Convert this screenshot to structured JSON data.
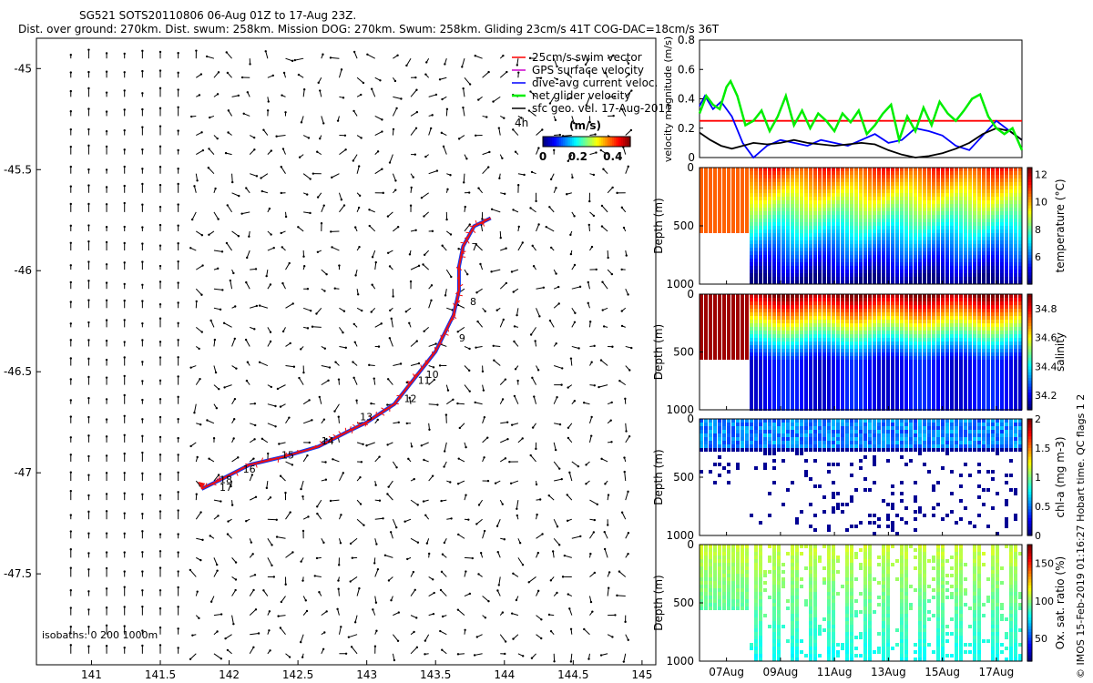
{
  "title_line1": "SG521 SOTS20110806 06-Aug 01Z to 17-Aug 23Z.",
  "title_line2": "Dist. over ground: 270km. Dist. swum: 258km. Mission DOG: 270km. Swum: 258km. Gliding 23cm/s 41T COG-DAC=18cm/s 36T",
  "copyright": "© IMOS 15-Feb-2019 01:16:27 Hobart time. QC flags 1  2",
  "colors": {
    "swim": "#ff0000",
    "gps": "#cc00cc",
    "dac": "#0000ff",
    "net": "#00ee00",
    "sfc": "#000000",
    "track_red": "#ee1111",
    "track_blue": "#1133ee"
  },
  "chart_data": [
    {
      "type": "map-track",
      "xlim": [
        140.6,
        145.1
      ],
      "ylim": [
        -47.95,
        -44.85
      ],
      "xticks": [
        "141",
        "141.5",
        "142",
        "142.5",
        "143",
        "143.5",
        "144",
        "144.5",
        "145"
      ],
      "yticks": [
        "-45",
        "-45.5",
        "-46",
        "-46.5",
        "-47",
        "-47.5"
      ],
      "legend": [
        "25cm/s swim vector",
        "GPS surface velocity",
        "dive-avg current veloc.",
        "net glider velocity",
        "sfc geo. vel. 17-Aug-2011"
      ],
      "legend_extra": "4h",
      "colorbar_title": "(m/s)",
      "colorbar_ticks": [
        "0",
        "0.2",
        "0.4"
      ],
      "colorbar_range": [
        0,
        0.5
      ],
      "isobaths_label": "isobaths: 0    200   1000m",
      "track": [
        [
          141.8,
          -47.08
        ],
        [
          141.95,
          -47.03
        ],
        [
          142.15,
          -46.96
        ],
        [
          142.4,
          -46.92
        ],
        [
          142.65,
          -46.87
        ],
        [
          142.85,
          -46.8
        ],
        [
          143.0,
          -46.75
        ],
        [
          143.2,
          -46.66
        ],
        [
          143.35,
          -46.53
        ],
        [
          143.5,
          -46.4
        ],
        [
          143.63,
          -46.22
        ],
        [
          143.67,
          -46.1
        ],
        [
          143.67,
          -45.98
        ],
        [
          143.7,
          -45.88
        ],
        [
          143.78,
          -45.78
        ],
        [
          143.9,
          -45.74
        ]
      ],
      "dive_labels": [
        {
          "t": "7",
          "lon": 143.76,
          "lat": -45.9
        },
        {
          "t": "8",
          "lon": 143.75,
          "lat": -46.17
        },
        {
          "t": "9",
          "lon": 143.67,
          "lat": -46.35
        },
        {
          "t": "10",
          "lon": 143.43,
          "lat": -46.53
        },
        {
          "t": "11",
          "lon": 143.37,
          "lat": -46.56
        },
        {
          "t": "12",
          "lon": 143.27,
          "lat": -46.65
        },
        {
          "t": "13",
          "lon": 142.95,
          "lat": -46.74
        },
        {
          "t": "14",
          "lon": 142.67,
          "lat": -46.86
        },
        {
          "t": "15",
          "lon": 142.38,
          "lat": -46.93
        },
        {
          "t": "16",
          "lon": 142.1,
          "lat": -47.0
        },
        {
          "t": "18",
          "lon": 141.93,
          "lat": -47.05
        },
        {
          "t": "17",
          "lon": 141.93,
          "lat": -47.09
        }
      ]
    },
    {
      "type": "line",
      "ylabel": "velocity magnitude (m/s)",
      "ylim": [
        0,
        0.8
      ],
      "yticks": [
        "0",
        "0.2",
        "0.4",
        "0.6",
        "0.8"
      ],
      "xlim": [
        0,
        11.95
      ],
      "series": [
        {
          "name": "swim speed",
          "color": "#ff0000",
          "x": [
            0,
            11.95
          ],
          "values": [
            0.25,
            0.25
          ]
        },
        {
          "name": "dive-avg current",
          "color": "#0000ff",
          "x": [
            0,
            0.2,
            0.5,
            0.8,
            1.2,
            1.6,
            2.0,
            2.5,
            3.0,
            3.5,
            4.0,
            4.5,
            5.0,
            5.5,
            6.0,
            6.5,
            7.0,
            7.5,
            8.0,
            8.5,
            9.0,
            9.5,
            10.0,
            10.5,
            11.0,
            11.5,
            11.95
          ],
          "values": [
            0.35,
            0.42,
            0.33,
            0.38,
            0.28,
            0.1,
            0.0,
            0.08,
            0.12,
            0.1,
            0.08,
            0.12,
            0.1,
            0.08,
            0.12,
            0.16,
            0.1,
            0.12,
            0.2,
            0.18,
            0.15,
            0.08,
            0.05,
            0.15,
            0.25,
            0.18,
            0.12
          ]
        },
        {
          "name": "surface geostrophic",
          "color": "#000000",
          "x": [
            0,
            0.4,
            0.8,
            1.2,
            1.6,
            2.0,
            2.5,
            3.0,
            3.5,
            4.0,
            4.5,
            5.0,
            5.5,
            6.0,
            6.5,
            7.0,
            7.5,
            8.0,
            8.5,
            9.0,
            9.5,
            10.0,
            10.5,
            11.0,
            11.5,
            11.95
          ],
          "values": [
            0.17,
            0.12,
            0.08,
            0.06,
            0.08,
            0.1,
            0.09,
            0.1,
            0.12,
            0.1,
            0.09,
            0.08,
            0.09,
            0.1,
            0.09,
            0.05,
            0.02,
            0.0,
            0.01,
            0.03,
            0.06,
            0.1,
            0.16,
            0.2,
            0.18,
            0.12
          ]
        },
        {
          "name": "net glider velocity",
          "color": "#00ee00",
          "x": [
            0,
            0.25,
            0.5,
            0.75,
            1.0,
            1.15,
            1.4,
            1.7,
            2.0,
            2.3,
            2.6,
            2.9,
            3.2,
            3.5,
            3.8,
            4.1,
            4.4,
            4.7,
            5.0,
            5.3,
            5.6,
            5.9,
            6.2,
            6.5,
            6.8,
            7.1,
            7.4,
            7.7,
            8.0,
            8.3,
            8.6,
            8.9,
            9.2,
            9.5,
            9.8,
            10.1,
            10.4,
            10.7,
            11.0,
            11.3,
            11.6,
            11.95
          ],
          "values": [
            0.3,
            0.42,
            0.36,
            0.33,
            0.48,
            0.52,
            0.42,
            0.22,
            0.25,
            0.32,
            0.18,
            0.28,
            0.42,
            0.22,
            0.32,
            0.2,
            0.3,
            0.25,
            0.18,
            0.3,
            0.24,
            0.32,
            0.16,
            0.22,
            0.3,
            0.36,
            0.12,
            0.28,
            0.18,
            0.34,
            0.22,
            0.38,
            0.3,
            0.25,
            0.32,
            0.4,
            0.43,
            0.28,
            0.2,
            0.16,
            0.2,
            0.05
          ]
        }
      ]
    },
    {
      "type": "heatmap",
      "ylabel": "Depth (m)",
      "cbar_label": "temperature (°C)",
      "ylim": [
        0,
        1000
      ],
      "yticks": [
        "0",
        "500",
        "1000"
      ],
      "cbar_range": [
        4,
        12.5
      ],
      "cbar_ticks": [
        "6",
        "8",
        "10",
        "12"
      ]
    },
    {
      "type": "heatmap",
      "ylabel": "Depth (m)",
      "cbar_label": "salinity",
      "ylim": [
        0,
        1000
      ],
      "yticks": [
        "0",
        "500",
        "1000"
      ],
      "cbar_range": [
        34.1,
        34.9
      ],
      "cbar_ticks": [
        "34.2",
        "34.4",
        "34.6",
        "34.8"
      ]
    },
    {
      "type": "heatmap",
      "ylabel": "Depth (m)",
      "cbar_label": "chl-a (mg m-3)",
      "ylim": [
        0,
        1000
      ],
      "yticks": [
        "0",
        "500",
        "1000"
      ],
      "cbar_range": [
        0,
        2
      ],
      "cbar_ticks": [
        "0",
        "0.5",
        "1",
        "1.5",
        "2"
      ]
    },
    {
      "type": "heatmap",
      "ylabel": "Depth (m)",
      "cbar_label": "Ox. sat. ratio (%)",
      "ylim": [
        0,
        1000
      ],
      "yticks": [
        "0",
        "500",
        "1000"
      ],
      "cbar_range": [
        20,
        175
      ],
      "cbar_ticks": [
        "50",
        "100",
        "150"
      ],
      "time_ticks": [
        "07Aug",
        "09Aug",
        "11Aug",
        "13Aug",
        "15Aug",
        "17Aug"
      ],
      "time_tick_days": [
        1,
        3,
        5,
        7,
        9,
        11
      ],
      "xlim_days": [
        0,
        11.95
      ]
    }
  ]
}
